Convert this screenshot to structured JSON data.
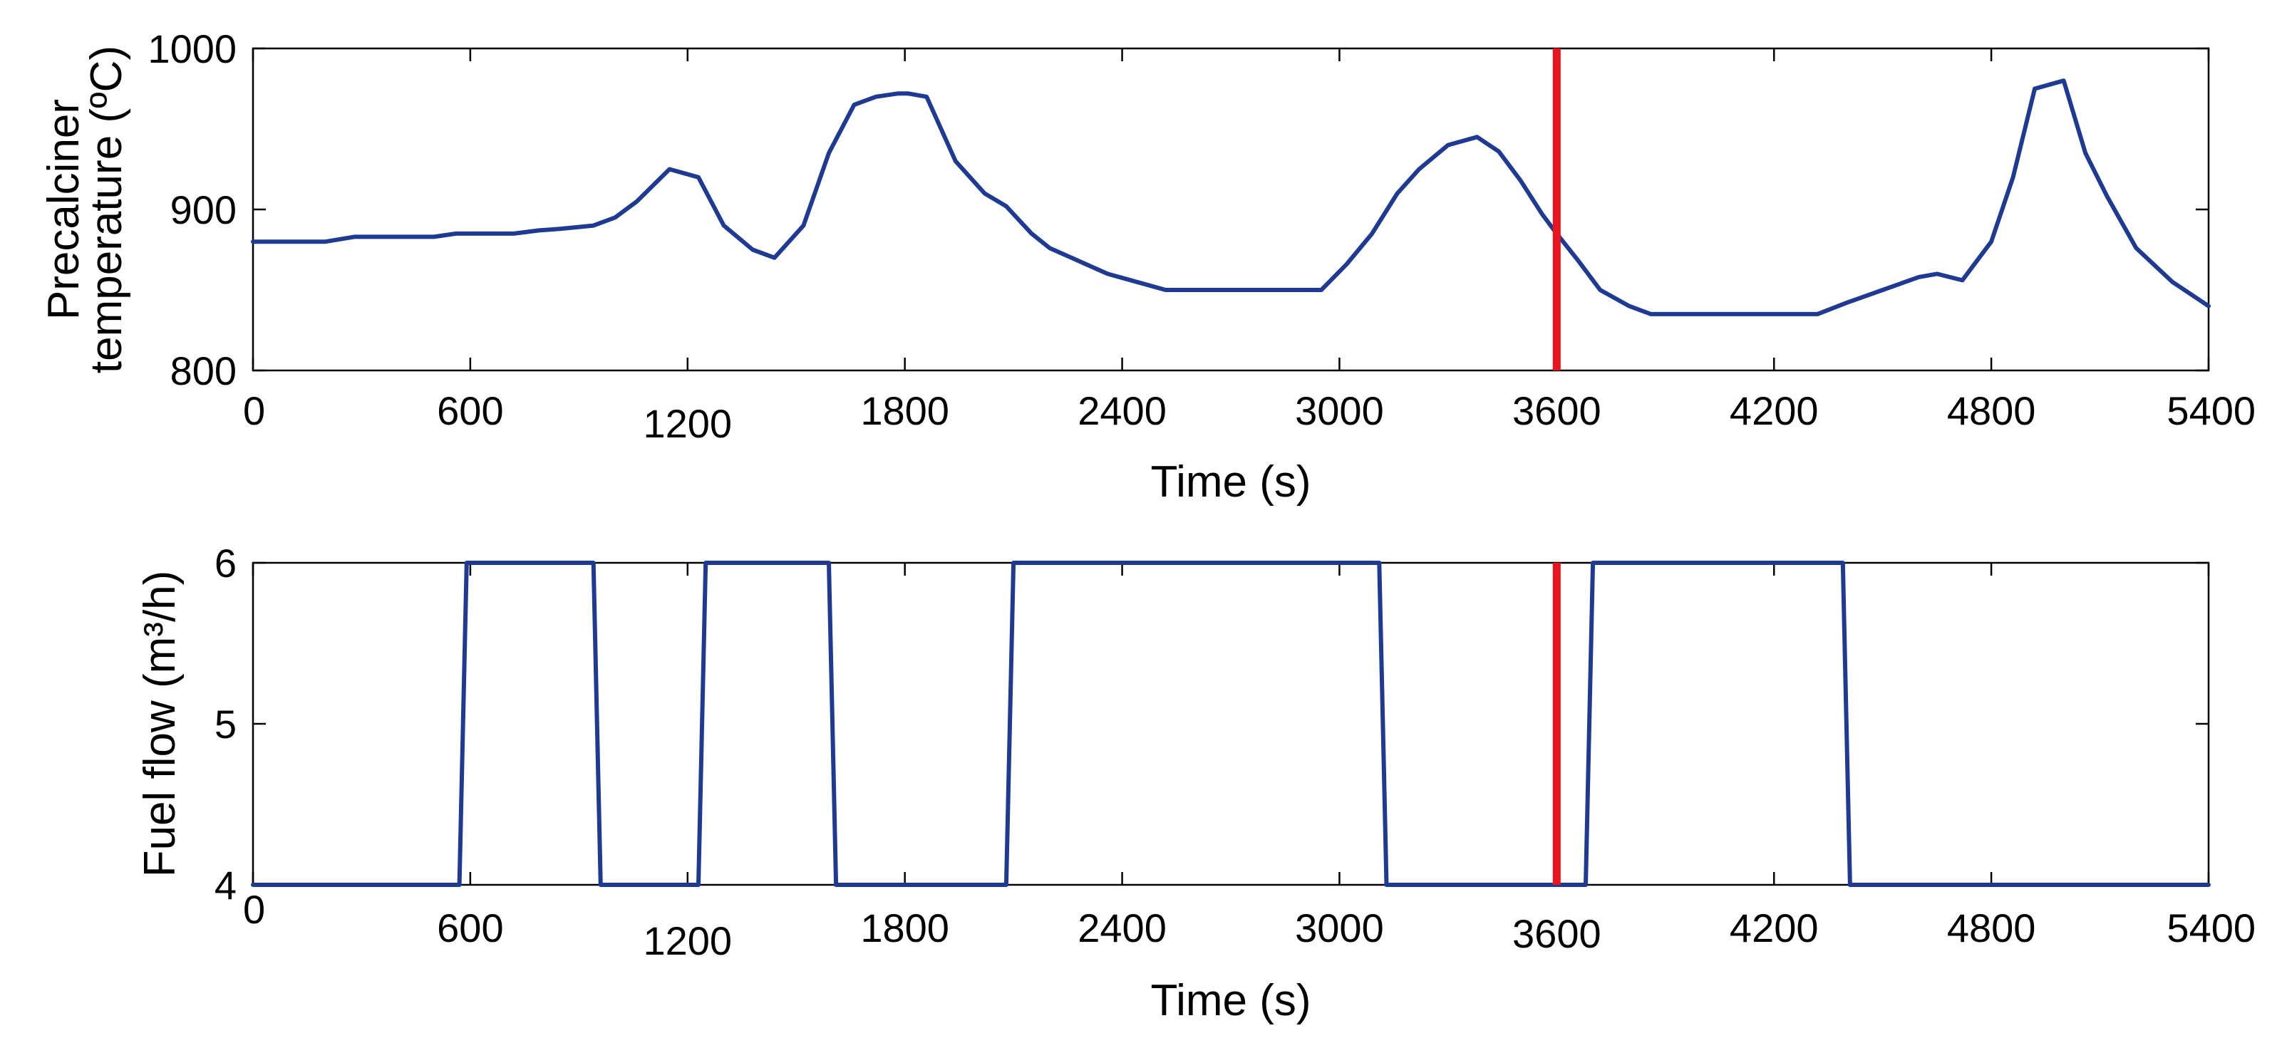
{
  "chart_data": [
    {
      "type": "line",
      "xlabel": "Time (s)",
      "ylabel_lines": [
        "Precalciner",
        "temperature (ºC)"
      ],
      "xlim": [
        0,
        5400
      ],
      "ylim": [
        800,
        1000
      ],
      "xticks": [
        0,
        600,
        1200,
        1800,
        2400,
        3000,
        3600,
        4200,
        4800,
        5400
      ],
      "xtick_labels": [
        "0",
        "600",
        "1200",
        "1800",
        "2400",
        "3000",
        "3600",
        "4200",
        "4800",
        "5400"
      ],
      "yticks": [
        800,
        900,
        1000
      ],
      "ytick_labels": [
        "800",
        "900",
        "1000"
      ],
      "marker_x": 3600,
      "series": [
        {
          "name": "Precalciner temperature",
          "color": "#1f3a93",
          "x": [
            0,
            100,
            200,
            280,
            400,
            500,
            560,
            660,
            720,
            790,
            850,
            940,
            1000,
            1060,
            1150,
            1230,
            1300,
            1380,
            1440,
            1520,
            1590,
            1660,
            1720,
            1780,
            1810,
            1860,
            1940,
            2020,
            2080,
            2150,
            2200,
            2260,
            2360,
            2440,
            2520,
            2600,
            2700,
            2800,
            2900,
            2950,
            3020,
            3090,
            3160,
            3220,
            3300,
            3380,
            3440,
            3500,
            3560,
            3600,
            3660,
            3720,
            3800,
            3860,
            3940,
            4000,
            4100,
            4200,
            4320,
            4400,
            4500,
            4600,
            4650,
            4720,
            4750,
            4800,
            4860,
            4920,
            5000,
            5060,
            5120,
            5200,
            5300,
            5400
          ],
          "values": [
            880,
            880,
            880,
            883,
            883,
            883,
            885,
            885,
            885,
            887,
            888,
            890,
            895,
            905,
            925,
            920,
            890,
            875,
            870,
            890,
            935,
            965,
            970,
            972,
            972,
            970,
            930,
            910,
            902,
            885,
            876,
            870,
            860,
            855,
            850,
            850,
            850,
            850,
            850,
            850,
            866,
            885,
            910,
            925,
            940,
            945,
            936,
            918,
            897,
            885,
            868,
            850,
            840,
            835,
            835,
            835,
            835,
            835,
            835,
            842,
            850,
            858,
            860,
            856,
            865,
            880,
            920,
            975,
            980,
            935,
            908,
            876,
            855,
            840
          ]
        }
      ]
    },
    {
      "type": "line",
      "xlabel": "Time (s)",
      "ylabel": "Fuel flow (m³/h)",
      "xlim": [
        0,
        5400
      ],
      "ylim": [
        4,
        6
      ],
      "xticks": [
        0,
        600,
        1200,
        1800,
        2400,
        3000,
        3600,
        4200,
        4800,
        5400
      ],
      "xtick_labels": [
        "0",
        "600",
        "1200",
        "1800",
        "2400",
        "3000",
        "3600",
        "4200",
        "4800",
        "5400"
      ],
      "yticks": [
        4,
        5,
        6
      ],
      "ytick_labels": [
        "4",
        "5",
        "6"
      ],
      "marker_x": 3600,
      "series": [
        {
          "name": "Fuel flow",
          "color": "#1f3a93",
          "x": [
            0,
            570,
            590,
            940,
            960,
            1230,
            1250,
            1590,
            1610,
            2080,
            2100,
            3110,
            3130,
            3680,
            3700,
            4390,
            4410,
            5400
          ],
          "values": [
            4,
            4,
            6,
            6,
            4,
            4,
            6,
            6,
            4,
            4,
            6,
            6,
            4,
            4,
            6,
            6,
            4,
            4
          ]
        }
      ]
    }
  ]
}
